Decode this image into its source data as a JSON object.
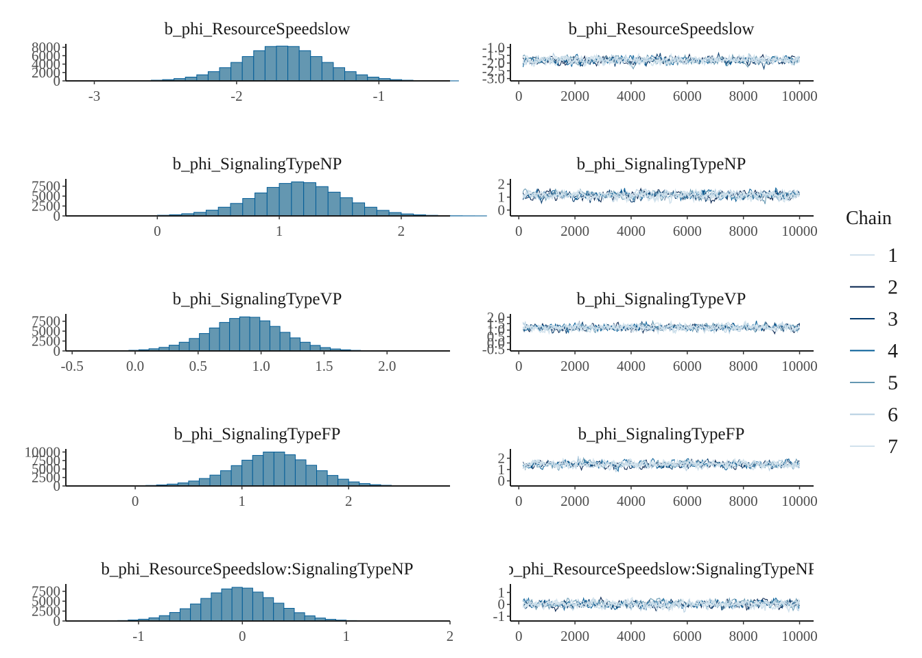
{
  "legend": {
    "title": "Chain",
    "entries": [
      {
        "label": "1",
        "color": "#d1e1ec"
      },
      {
        "label": "2",
        "color": "#011f4b"
      },
      {
        "label": "3",
        "color": "#03396c"
      },
      {
        "label": "4",
        "color": "#005b96"
      },
      {
        "label": "5",
        "color": "#6497b1"
      },
      {
        "label": "6",
        "color": "#b3cde0"
      },
      {
        "label": "7",
        "color": "#d1e1ec"
      }
    ]
  },
  "colors": {
    "hist_fill": "#6497b1",
    "hist_stroke": "#005b96",
    "trace_light": "#b3cde0",
    "trace_dark": "#011f4b",
    "trace_mid": "#005b96"
  },
  "chart_data": [
    {
      "type": "bar",
      "kind": "histogram",
      "title": "b_phi_ResourceSpeedslow",
      "xlim": [
        -3.2,
        -0.5
      ],
      "ylim": [
        0,
        8500
      ],
      "xticks": [
        "-3",
        "-2",
        "-1"
      ],
      "xtick_values": [
        -3,
        -2,
        -1
      ],
      "yticks": [
        "0",
        "2000",
        "4000",
        "6000",
        "8000"
      ],
      "ytick_values": [
        0,
        2000,
        4000,
        6000,
        8000
      ],
      "bin_start": -3.0,
      "bin_width": 0.08,
      "values": [
        5,
        10,
        20,
        40,
        80,
        160,
        300,
        550,
        900,
        1450,
        2200,
        3150,
        4400,
        5800,
        7200,
        8200,
        8300,
        8200,
        7200,
        5800,
        4400,
        3150,
        2200,
        1450,
        900,
        550,
        300,
        160,
        80,
        40,
        20,
        10
      ]
    },
    {
      "type": "line",
      "kind": "trace",
      "title": "b_phi_ResourceSpeedslow",
      "xlim": [
        -300,
        10500
      ],
      "ylim": [
        -3.15,
        -0.85
      ],
      "xticks": [
        "0",
        "2000",
        "4000",
        "6000",
        "8000",
        "10000"
      ],
      "xtick_values": [
        0,
        2000,
        4000,
        6000,
        8000,
        10000
      ],
      "yticks": [
        "-3.0",
        "-2.5",
        "-2.0",
        "-1.5",
        "-1.0"
      ],
      "ytick_values": [
        -3.0,
        -2.5,
        -2.0,
        -1.5,
        -1.0
      ],
      "iterations": 10000,
      "chains": 7,
      "center": -1.82,
      "spread": 0.26
    },
    {
      "type": "bar",
      "kind": "histogram",
      "title": "b_phi_SignalingTypeNP",
      "xlim": [
        -0.75,
        2.4
      ],
      "ylim": [
        0,
        9000
      ],
      "xticks": [
        "0",
        "1",
        "2"
      ],
      "xtick_values": [
        0,
        1,
        2
      ],
      "yticks": [
        "0",
        "2500",
        "5000",
        "7500"
      ],
      "ytick_values": [
        0,
        2500,
        5000,
        7500
      ],
      "bin_start": -0.5,
      "bin_width": 0.1,
      "values": [
        5,
        10,
        20,
        40,
        80,
        160,
        300,
        550,
        900,
        1450,
        2200,
        3150,
        4400,
        5800,
        7200,
        8200,
        8600,
        8400,
        7400,
        6000,
        4600,
        3300,
        2200,
        1400,
        850,
        500,
        280,
        150,
        75,
        35,
        15,
        8
      ]
    },
    {
      "type": "line",
      "kind": "trace",
      "title": "b_phi_SignalingTypeNP",
      "xlim": [
        -300,
        10500
      ],
      "ylim": [
        -0.45,
        2.3
      ],
      "xticks": [
        "0",
        "2000",
        "4000",
        "6000",
        "8000",
        "10000"
      ],
      "xtick_values": [
        0,
        2000,
        4000,
        6000,
        8000,
        10000
      ],
      "yticks": [
        "0",
        "1",
        "2"
      ],
      "ytick_values": [
        0,
        1,
        2
      ],
      "iterations": 10000,
      "chains": 7,
      "center": 1.15,
      "spread": 0.32
    },
    {
      "type": "bar",
      "kind": "histogram",
      "title": "b_phi_SignalingTypeVP",
      "xlim": [
        -0.55,
        2.5
      ],
      "ylim": [
        0,
        9000
      ],
      "xticks": [
        "-0.5",
        "0.0",
        "0.5",
        "1.0",
        "1.5",
        "2.0"
      ],
      "xtick_values": [
        -0.5,
        0.0,
        0.5,
        1.0,
        1.5,
        2.0
      ],
      "yticks": [
        "0",
        "2500",
        "5000",
        "7500"
      ],
      "ytick_values": [
        0,
        2500,
        5000,
        7500
      ],
      "bin_start": -0.45,
      "bin_width": 0.08,
      "values": [
        5,
        10,
        20,
        40,
        80,
        160,
        300,
        550,
        900,
        1450,
        2200,
        3150,
        4400,
        5800,
        7200,
        8200,
        8600,
        8500,
        7600,
        6200,
        4700,
        3300,
        2200,
        1400,
        850,
        500,
        280,
        150,
        75,
        35,
        15,
        8
      ]
    },
    {
      "type": "line",
      "kind": "trace",
      "title": "b_phi_SignalingTypeVP",
      "xlim": [
        -300,
        10500
      ],
      "ylim": [
        -0.62,
        2.15
      ],
      "xticks": [
        "0",
        "2000",
        "4000",
        "6000",
        "8000",
        "10000"
      ],
      "xtick_values": [
        0,
        2000,
        4000,
        6000,
        8000,
        10000
      ],
      "yticks": [
        "-0.5",
        "0.0",
        "0.5",
        "1.0",
        "1.5",
        "2.0"
      ],
      "ytick_values": [
        -0.5,
        0.0,
        0.5,
        1.0,
        1.5,
        2.0
      ],
      "iterations": 10000,
      "chains": 7,
      "center": 1.2,
      "spread": 0.27
    },
    {
      "type": "bar",
      "kind": "histogram",
      "title": "b_phi_SignalingTypeFP",
      "xlim": [
        -0.65,
        2.95
      ],
      "ylim": [
        0,
        10500
      ],
      "xticks": [
        "0",
        "1",
        "2"
      ],
      "xtick_values": [
        0,
        1,
        2
      ],
      "yticks": [
        "0",
        "2500",
        "5000",
        "7500",
        "10000"
      ],
      "ytick_values": [
        0,
        2500,
        5000,
        7500,
        10000
      ],
      "bin_start": -0.4,
      "bin_width": 0.1,
      "values": [
        5,
        10,
        20,
        40,
        80,
        160,
        300,
        550,
        900,
        1450,
        2200,
        3200,
        4500,
        6000,
        7600,
        9000,
        10000,
        10000,
        9200,
        7700,
        6100,
        4500,
        3100,
        2000,
        1200,
        700,
        380,
        200,
        100,
        45,
        20,
        8
      ]
    },
    {
      "type": "line",
      "kind": "trace",
      "title": "b_phi_SignalingTypeFP",
      "xlim": [
        -300,
        10500
      ],
      "ylim": [
        -0.45,
        2.7
      ],
      "xticks": [
        "0",
        "2000",
        "4000",
        "6000",
        "8000",
        "10000"
      ],
      "xtick_values": [
        0,
        2000,
        4000,
        6000,
        8000,
        10000
      ],
      "yticks": [
        "0",
        "1",
        "2"
      ],
      "ytick_values": [
        0,
        1,
        2
      ],
      "iterations": 10000,
      "chains": 7,
      "center": 1.45,
      "spread": 0.32
    },
    {
      "type": "bar",
      "kind": "histogram",
      "title": "b_phi_ResourceSpeedslow:SignalingTypeNP",
      "xlim": [
        -1.7,
        2.0
      ],
      "ylim": [
        0,
        9000
      ],
      "xticks": [
        "-1",
        "0",
        "1",
        "2"
      ],
      "xtick_values": [
        -1,
        0,
        1,
        2
      ],
      "yticks": [
        "0",
        "2500",
        "5000",
        "7500"
      ],
      "ytick_values": [
        0,
        2500,
        5000,
        7500
      ],
      "bin_start": -1.7,
      "bin_width": 0.1,
      "values": [
        3,
        8,
        15,
        30,
        60,
        120,
        250,
        450,
        800,
        1350,
        2150,
        3100,
        4300,
        5700,
        7100,
        8100,
        8500,
        8300,
        7300,
        5900,
        4500,
        3200,
        2100,
        1300,
        750,
        420,
        220,
        110,
        50,
        22,
        10,
        5
      ]
    },
    {
      "type": "line",
      "kind": "trace",
      "title": "b_phi_ResourceSpeedslow:SignalingTypeNP",
      "xlim": [
        -300,
        10500
      ],
      "ylim": [
        -1.4,
        1.6
      ],
      "xticks": [
        "0",
        "2000",
        "4000",
        "6000",
        "8000",
        "10000"
      ],
      "xtick_values": [
        0,
        2000,
        4000,
        6000,
        8000,
        10000
      ],
      "yticks": [
        "-1",
        "0",
        "1"
      ],
      "ytick_values": [
        -1,
        0,
        1
      ],
      "iterations": 10000,
      "chains": 7,
      "center": 0.02,
      "spread": 0.35
    }
  ]
}
